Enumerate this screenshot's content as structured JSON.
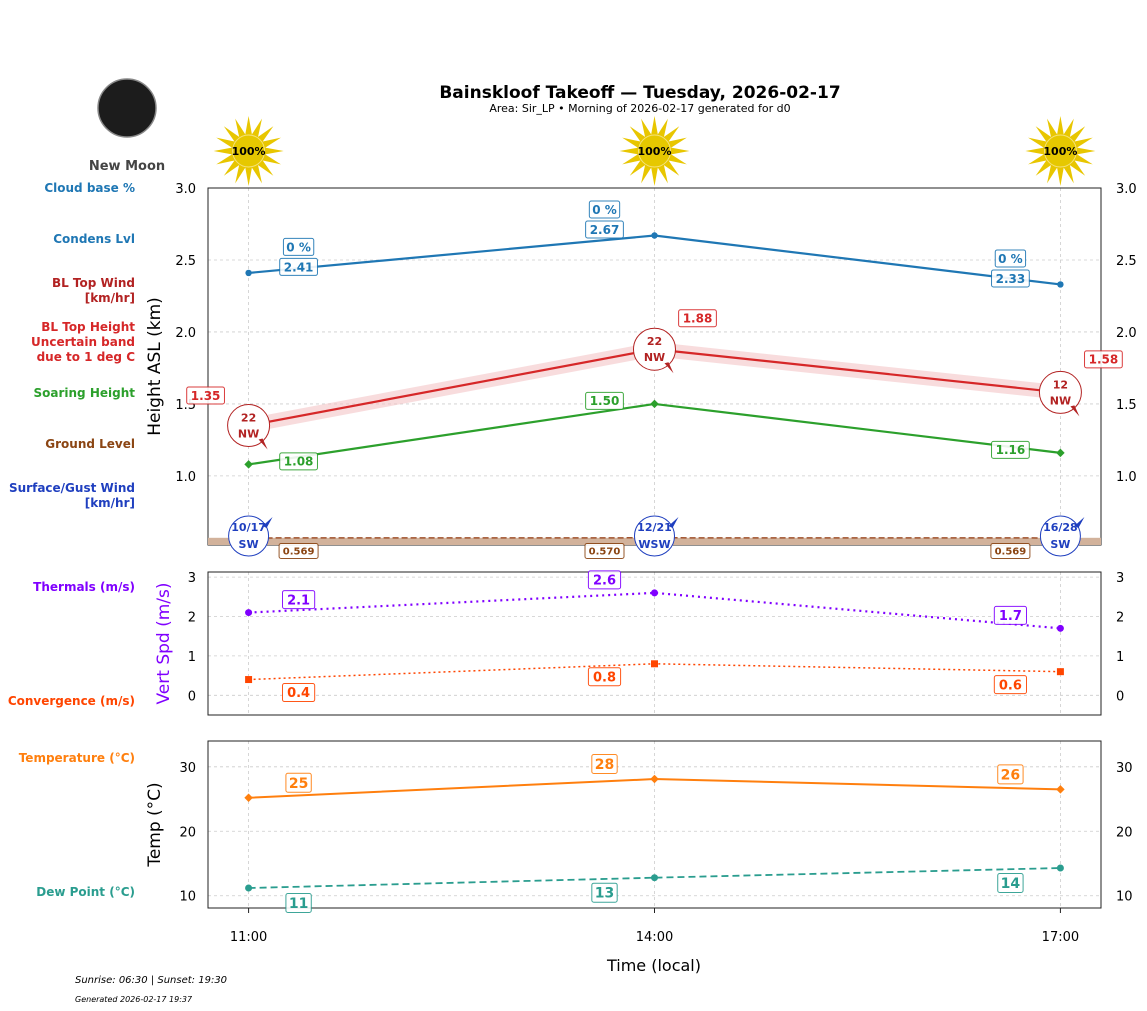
{
  "title": "Bainskloof Takeoff — Tuesday, 2026-02-17",
  "subtitle": "Area: Sir_LP • Morning of 2026-02-17 generated for d0",
  "moon": {
    "phase": "New Moon"
  },
  "footer": {
    "sun": "Sunrise: 06:30 | Sunset: 19:30",
    "generated": "Generated 2026-02-17 19:37"
  },
  "legend_labels": [
    {
      "text": "Cloud base %",
      "color": "#1f77b4"
    },
    {
      "text": "Condens Lvl",
      "color": "#1f77b4"
    },
    {
      "text": "BL Top Wind\n[km/hr]",
      "color": "#b22222"
    },
    {
      "text": "BL Top Height\nUncertain band\ndue to 1 deg C",
      "color": "#d62728"
    },
    {
      "text": "Soaring Height",
      "color": "#2ca02c"
    },
    {
      "text": "Ground Level",
      "color": "#8b4513"
    },
    {
      "text": "Surface/Gust Wind\n[km/hr]",
      "color": "#1f3fbf"
    },
    {
      "text": "Thermals (m/s)",
      "color": "#8000ff"
    },
    {
      "text": "Convergence (m/s)",
      "color": "#ff4500"
    },
    {
      "text": "Temperature (°C)",
      "color": "#ff7f0e"
    },
    {
      "text": "Dew Point (°C)",
      "color": "#2a9d8f"
    }
  ],
  "chart_data": [
    {
      "type": "line",
      "ylabel": "Height ASL (km)",
      "ylim": [
        0.52,
        3.0
      ],
      "yticks": [
        "1.0",
        "1.5",
        "2.0",
        "2.5",
        "3.0"
      ],
      "x": [
        "11:00",
        "14:00",
        "17:00"
      ],
      "sun_cover": [
        "100%",
        "100%",
        "100%"
      ],
      "grid": true,
      "series": [
        {
          "key": "condens",
          "values": [
            2.41,
            2.67,
            2.33
          ],
          "labels": [
            "2.41",
            "2.67",
            "2.33"
          ],
          "cloud_pct": [
            "0 %",
            "0 %",
            "0 %"
          ],
          "color": "#1f77b4"
        },
        {
          "key": "bltop",
          "values": [
            1.35,
            1.88,
            1.58
          ],
          "labels": [
            "1.35",
            "1.88",
            "1.58"
          ],
          "band": 0.05,
          "color": "#d62728",
          "wind": [
            {
              "speed": "22",
              "dir": "NW"
            },
            {
              "speed": "22",
              "dir": "NW"
            },
            {
              "speed": "12",
              "dir": "NW"
            }
          ]
        },
        {
          "key": "soaring",
          "values": [
            1.08,
            1.5,
            1.16
          ],
          "labels": [
            "1.08",
            "1.50",
            "1.16"
          ],
          "color": "#2ca02c"
        },
        {
          "key": "ground",
          "values": [
            0.569,
            0.57,
            0.569
          ],
          "labels": [
            "0.569",
            "0.570",
            "0.569"
          ],
          "color": "#8b4513"
        }
      ],
      "surface_wind": [
        {
          "speed": "10/17",
          "dir": "SW"
        },
        {
          "speed": "12/21",
          "dir": "WSW"
        },
        {
          "speed": "16/28",
          "dir": "SW"
        }
      ]
    },
    {
      "type": "line",
      "ylabel": "Vert Spd (m/s)",
      "ylim": [
        -0.5,
        3.13
      ],
      "yticks": [
        "0",
        "1",
        "2",
        "3"
      ],
      "x": [
        "11:00",
        "14:00",
        "17:00"
      ],
      "series": [
        {
          "key": "thermals",
          "values": [
            2.1,
            2.6,
            1.7
          ],
          "labels": [
            "2.1",
            "2.6",
            "1.7"
          ],
          "color": "#8000ff"
        },
        {
          "key": "convergence",
          "values": [
            0.4,
            0.8,
            0.6
          ],
          "labels": [
            "0.4",
            "0.8",
            "0.6"
          ],
          "color": "#ff4500"
        }
      ]
    },
    {
      "type": "line",
      "ylabel": "Temp (°C)",
      "xlabel": "Time (local)",
      "ylim": [
        8.1,
        34.0
      ],
      "yticks": [
        "10",
        "20",
        "30"
      ],
      "x": [
        "11:00",
        "14:00",
        "17:00"
      ],
      "series": [
        {
          "key": "temp",
          "values": [
            25.2,
            28.1,
            26.5
          ],
          "labels": [
            "25",
            "28",
            "26"
          ],
          "color": "#ff7f0e"
        },
        {
          "key": "dew",
          "values": [
            11.2,
            12.8,
            14.3
          ],
          "labels": [
            "11",
            "13",
            "14"
          ],
          "color": "#2a9d8f"
        }
      ]
    }
  ]
}
